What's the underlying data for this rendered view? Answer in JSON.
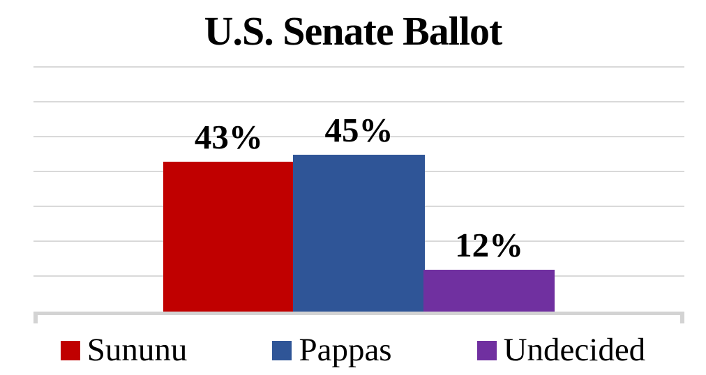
{
  "chart_data": {
    "type": "bar",
    "title": "U.S. Senate Ballot",
    "categories": [
      "Sununu",
      "Pappas",
      "Undecided"
    ],
    "series": [
      {
        "name": "Sununu",
        "value": 43,
        "label": "43%",
        "color": "#C00000"
      },
      {
        "name": "Pappas",
        "value": 45,
        "label": "45%",
        "color": "#2F5597"
      },
      {
        "name": "Undecided",
        "value": 12,
        "label": "12%",
        "color": "#7030A0"
      }
    ],
    "xlabel": "",
    "ylabel": "",
    "ylim": [
      0,
      70
    ],
    "grid_step": 10,
    "grid_on": true,
    "y_axis_labels_visible": false,
    "grid_color": "#D9D9D9",
    "axis_color": "#D3D3D3",
    "label_color": "#000000",
    "background_color": "#FFFFFF",
    "legend_position": "bottom"
  }
}
